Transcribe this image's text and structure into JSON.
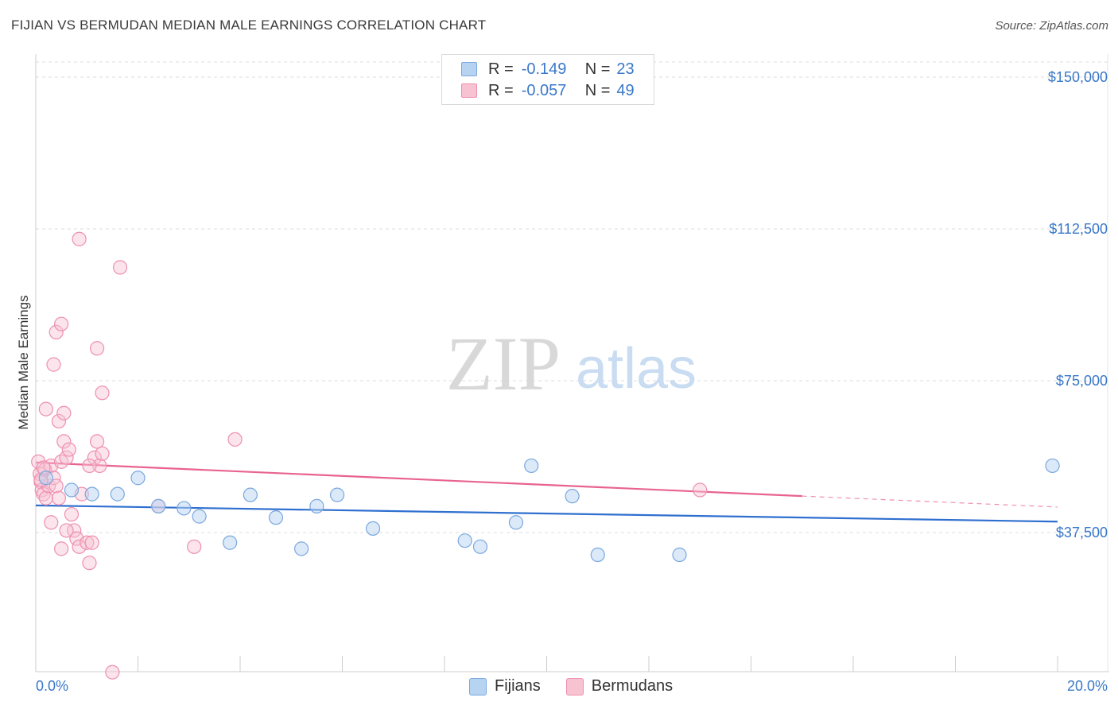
{
  "title": "FIJIAN VS BERMUDAN MEDIAN MALE EARNINGS CORRELATION CHART",
  "source": "Source: ZipAtlas.com",
  "watermark": {
    "zip": "ZIP",
    "atlas": "atlas"
  },
  "legend": {
    "rows": [
      {
        "r_label": "R =",
        "r_value": "-0.149",
        "n_label": "N =",
        "n_value": "23"
      },
      {
        "r_label": "R =",
        "r_value": "-0.057",
        "n_label": "N =",
        "n_value": "49"
      }
    ]
  },
  "bottom_legend": [
    "Fijians",
    "Bermudans"
  ],
  "colors": {
    "blue_fill": "#b7d3f2",
    "blue_stroke": "#7aa8de",
    "blue_line": "#2f6fcf",
    "pink_fill": "#f7c3d3",
    "pink_stroke": "#ee8fb0",
    "pink_line": "#e8638e",
    "tick_text": "#3a78c9",
    "grid": "#dcdcdc"
  },
  "chart_data": {
    "type": "scatter",
    "title": "FIJIAN VS BERMUDAN MEDIAN MALE EARNINGS CORRELATION CHART",
    "xlabel": "",
    "ylabel": "Median Male Earnings",
    "xlim": [
      0,
      20
    ],
    "ylim": [
      0,
      153000
    ],
    "x_tick_labels": [
      "0.0%",
      "20.0%"
    ],
    "y_ticks": [
      37500,
      75000,
      112500,
      150000
    ],
    "y_tick_labels": [
      "$37,500",
      "$75,000",
      "$112,500",
      "$150,000"
    ],
    "grid": true,
    "series": [
      {
        "name": "Fijians",
        "points": [
          [
            0.2,
            51000
          ],
          [
            0.7,
            48000
          ],
          [
            1.1,
            47000
          ],
          [
            1.6,
            47000
          ],
          [
            2.0,
            51000
          ],
          [
            2.4,
            44000
          ],
          [
            2.9,
            43500
          ],
          [
            3.2,
            41500
          ],
          [
            3.8,
            35000
          ],
          [
            4.2,
            46800
          ],
          [
            4.7,
            41200
          ],
          [
            5.2,
            33500
          ],
          [
            5.5,
            44000
          ],
          [
            5.9,
            46800
          ],
          [
            6.6,
            38500
          ],
          [
            8.4,
            35500
          ],
          [
            8.7,
            34000
          ],
          [
            9.4,
            40000
          ],
          [
            9.7,
            54000
          ],
          [
            10.5,
            46500
          ],
          [
            11.0,
            32000
          ],
          [
            12.6,
            32000
          ],
          [
            19.9,
            54000
          ]
        ],
        "trend": {
          "x": [
            0,
            20
          ],
          "y": [
            44200,
            40200
          ]
        }
      },
      {
        "name": "Bermudans",
        "points": [
          [
            0.05,
            55000
          ],
          [
            0.08,
            52000
          ],
          [
            0.1,
            50000
          ],
          [
            0.12,
            48000
          ],
          [
            0.15,
            47000
          ],
          [
            0.18,
            53000
          ],
          [
            0.2,
            46000
          ],
          [
            0.25,
            49000
          ],
          [
            0.3,
            54000
          ],
          [
            0.35,
            51000
          ],
          [
            0.4,
            49000
          ],
          [
            0.45,
            46000
          ],
          [
            0.5,
            55000
          ],
          [
            0.55,
            60000
          ],
          [
            0.6,
            56000
          ],
          [
            0.65,
            58000
          ],
          [
            0.7,
            42000
          ],
          [
            0.75,
            38000
          ],
          [
            0.8,
            36000
          ],
          [
            0.85,
            34000
          ],
          [
            1.0,
            35000
          ],
          [
            1.05,
            30000
          ],
          [
            1.15,
            56000
          ],
          [
            1.2,
            60000
          ],
          [
            1.25,
            54000
          ],
          [
            1.3,
            57000
          ],
          [
            0.4,
            87000
          ],
          [
            0.5,
            89000
          ],
          [
            0.35,
            79000
          ],
          [
            1.2,
            83000
          ],
          [
            1.3,
            72000
          ],
          [
            0.2,
            68000
          ],
          [
            0.45,
            65000
          ],
          [
            0.55,
            67000
          ],
          [
            0.85,
            110000
          ],
          [
            1.65,
            103000
          ],
          [
            0.3,
            40000
          ],
          [
            0.5,
            33500
          ],
          [
            0.6,
            38000
          ],
          [
            0.9,
            47000
          ],
          [
            1.05,
            54000
          ],
          [
            1.1,
            35000
          ],
          [
            1.5,
            3000
          ],
          [
            2.4,
            44000
          ],
          [
            3.1,
            34000
          ],
          [
            3.9,
            60500
          ],
          [
            13.0,
            48000
          ],
          [
            0.1,
            50500
          ],
          [
            0.15,
            53500
          ]
        ],
        "trend": {
          "x": [
            0,
            15
          ],
          "y": [
            54800,
            46500
          ]
        },
        "trend_dashed": {
          "x": [
            15,
            20
          ],
          "y": [
            46500,
            43800
          ]
        }
      }
    ]
  }
}
